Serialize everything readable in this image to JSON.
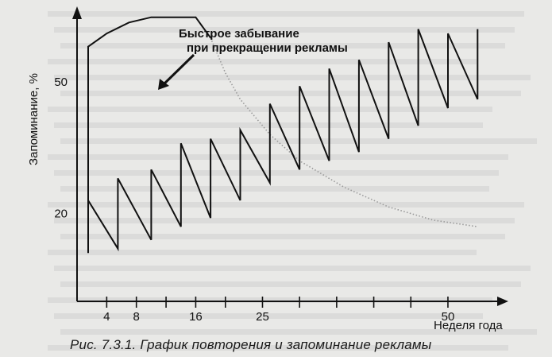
{
  "caption": "Рис. 7.3.1. График повторения и запоминание рекламы",
  "colors": {
    "ink": "#111111",
    "decay": "#9a9a9a",
    "paper": "#e9e9e7",
    "bleed": "#c4c4c2"
  },
  "chart_data": {
    "type": "line",
    "title": "",
    "annotation": "Быстрое забывание\nпри прекращении рекламы",
    "xlabel": "Неделя года",
    "ylabel": "Запоминание, %",
    "x_ticks": [
      4,
      8,
      12,
      16,
      20,
      25,
      30,
      35,
      40,
      45,
      50
    ],
    "x_tick_labels": [
      "4",
      "8",
      "",
      "16",
      "",
      "25",
      "",
      "",
      "",
      "",
      "50"
    ],
    "y_ticks": [
      20,
      50
    ],
    "y_tick_labels": [
      "20",
      "50"
    ],
    "xlim": [
      0,
      56
    ],
    "ylim": [
      0,
      65
    ],
    "grid": false,
    "series": [
      {
        "style": "solid",
        "points": [
          [
            1.5,
            11
          ],
          [
            1.5,
            58
          ],
          [
            4,
            61
          ],
          [
            7,
            63.5
          ],
          [
            10,
            64.7
          ],
          [
            13,
            64.7
          ],
          [
            16,
            64.7
          ],
          [
            18,
            60
          ]
        ]
      },
      {
        "style": "dotted",
        "points": [
          [
            18,
            60
          ],
          [
            20,
            52
          ],
          [
            22,
            46
          ],
          [
            24,
            42
          ],
          [
            26,
            38
          ],
          [
            28,
            35
          ],
          [
            30,
            32
          ],
          [
            32,
            30
          ],
          [
            34,
            28
          ],
          [
            36,
            26
          ],
          [
            38,
            24.5
          ],
          [
            40,
            23
          ],
          [
            42,
            21.5
          ],
          [
            44,
            20.5
          ],
          [
            46,
            19.5
          ],
          [
            48,
            18.5
          ],
          [
            50,
            18
          ],
          [
            52,
            17.5
          ],
          [
            54,
            17
          ]
        ]
      },
      {
        "style": "solid",
        "points": [
          [
            1.5,
            23
          ],
          [
            5.5,
            12
          ],
          [
            5.5,
            28
          ],
          [
            10,
            14
          ],
          [
            10,
            30
          ],
          [
            14,
            17
          ],
          [
            14,
            36
          ],
          [
            18,
            19
          ],
          [
            18,
            37
          ],
          [
            22,
            23
          ],
          [
            22,
            39
          ],
          [
            26,
            27
          ],
          [
            26,
            45
          ],
          [
            30,
            30
          ],
          [
            30,
            49
          ],
          [
            34,
            32
          ],
          [
            34,
            53
          ],
          [
            38,
            34
          ],
          [
            38,
            55
          ],
          [
            42,
            37
          ],
          [
            42,
            59
          ],
          [
            46,
            40
          ],
          [
            46,
            62
          ],
          [
            50,
            44
          ],
          [
            50,
            61
          ],
          [
            54,
            46
          ],
          [
            54,
            62
          ]
        ]
      }
    ]
  }
}
